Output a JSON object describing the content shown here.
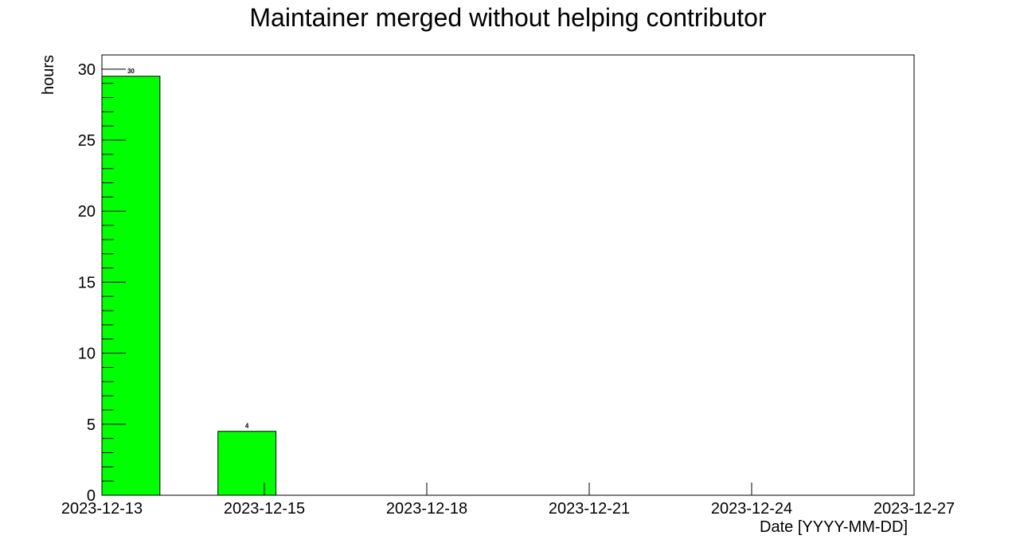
{
  "chart_data": {
    "type": "bar",
    "title": "Maintainer merged without helping contributor",
    "xlabel": "Date [YYYY-MM-DD]",
    "ylabel": "hours",
    "x_tick_labels": [
      "2023-12-13",
      "2023-12-15",
      "2023-12-18",
      "2023-12-21",
      "2023-12-24",
      "2023-12-27"
    ],
    "y_ticks": [
      0,
      5,
      10,
      15,
      20,
      25,
      30
    ],
    "ylim": [
      0,
      31
    ],
    "bars": [
      {
        "date": "2023-12-13",
        "value": 29.5,
        "label": "30"
      },
      {
        "date": "2023-12-15",
        "value": 4.5,
        "label": "4"
      }
    ],
    "bar_color": "#00ff00",
    "grid": false,
    "legend": "none"
  }
}
